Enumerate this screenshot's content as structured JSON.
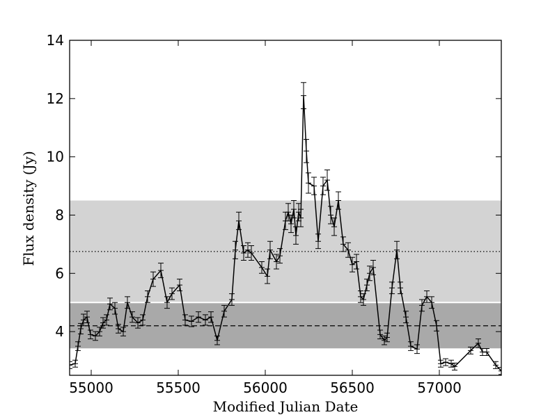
{
  "chart_data": {
    "type": "line",
    "xlabel": "Modified Julian Date",
    "ylabel": "Flux density (Jy)",
    "x": [
      54876,
      54908,
      54924,
      54940,
      54956,
      54976,
      54996,
      55024,
      55048,
      55068,
      55088,
      55108,
      55136,
      55156,
      55184,
      55208,
      55236,
      55268,
      55296,
      55324,
      55356,
      55400,
      55436,
      55464,
      55508,
      55540,
      55576,
      55616,
      55656,
      55688,
      55724,
      55764,
      55808,
      55828,
      55848,
      55876,
      55900,
      55920,
      55980,
      56012,
      56028,
      56064,
      56084,
      56116,
      56132,
      56148,
      56164,
      56176,
      56192,
      56204,
      56220,
      56236,
      56248,
      56280,
      56304,
      56332,
      56356,
      56376,
      56396,
      56420,
      56448,
      56476,
      56500,
      56524,
      56548,
      56564,
      56584,
      56600,
      56620,
      56660,
      56684,
      56700,
      56728,
      56756,
      56776,
      56808,
      56836,
      56872,
      56900,
      56928,
      56956,
      56984,
      57008,
      57036,
      57068,
      57088,
      57180,
      57224,
      57248,
      57272,
      57324,
      57356
    ],
    "series": [
      {
        "color": "#000000",
        "values": [
          2.85,
          2.9,
          3.5,
          4.1,
          4.4,
          4.5,
          3.9,
          3.85,
          4.0,
          4.3,
          4.4,
          4.95,
          4.8,
          4.1,
          4.0,
          5.0,
          4.5,
          4.3,
          4.4,
          5.2,
          5.8,
          6.1,
          5.0,
          5.3,
          5.6,
          4.4,
          4.35,
          4.5,
          4.4,
          4.5,
          3.7,
          4.7,
          5.1,
          6.8,
          7.8,
          6.7,
          6.8,
          6.7,
          6.2,
          5.9,
          6.8,
          6.4,
          6.6,
          7.8,
          8.1,
          7.7,
          8.2,
          7.3,
          8.1,
          7.9,
          12.1,
          10.2,
          9.1,
          9.0,
          7.1,
          9.0,
          9.2,
          8.0,
          7.6,
          8.5,
          7.0,
          6.8,
          6.3,
          6.4,
          5.2,
          5.1,
          5.6,
          6.0,
          6.2,
          3.9,
          3.7,
          3.8,
          5.5,
          6.8,
          5.5,
          4.5,
          3.5,
          3.4,
          4.9,
          5.2,
          5.0,
          4.2,
          2.9,
          2.95,
          2.9,
          2.8,
          3.35,
          3.6,
          3.3,
          3.3,
          2.85,
          2.65
        ],
        "errors": [
          0.12,
          0.12,
          0.15,
          0.18,
          0.2,
          0.2,
          0.15,
          0.15,
          0.15,
          0.18,
          0.18,
          0.2,
          0.2,
          0.15,
          0.15,
          0.2,
          0.18,
          0.18,
          0.18,
          0.2,
          0.25,
          0.25,
          0.2,
          0.2,
          0.2,
          0.18,
          0.18,
          0.18,
          0.18,
          0.18,
          0.15,
          0.2,
          0.2,
          0.3,
          0.3,
          0.25,
          0.25,
          0.25,
          0.2,
          0.25,
          0.3,
          0.25,
          0.25,
          0.3,
          0.3,
          0.3,
          0.3,
          0.3,
          0.3,
          0.3,
          0.45,
          0.4,
          0.35,
          0.3,
          0.25,
          0.3,
          0.35,
          0.3,
          0.3,
          0.3,
          0.25,
          0.25,
          0.25,
          0.25,
          0.2,
          0.2,
          0.2,
          0.25,
          0.25,
          0.15,
          0.15,
          0.15,
          0.2,
          0.3,
          0.2,
          0.2,
          0.15,
          0.15,
          0.2,
          0.2,
          0.2,
          0.18,
          0.12,
          0.12,
          0.12,
          0.12,
          0.12,
          0.15,
          0.12,
          0.12,
          0.12,
          0.12
        ]
      }
    ],
    "bands": [
      {
        "from": 5.0,
        "to": 8.5,
        "color": "#d3d3d3"
      },
      {
        "from": 3.4,
        "to": 5.0,
        "color": "#a9a9a9"
      }
    ],
    "hlines": [
      {
        "value": 4.2,
        "style": "dashed"
      },
      {
        "value": 6.75,
        "style": "dotted"
      }
    ],
    "xlim": [
      54876,
      57356
    ],
    "ylim": [
      2.5,
      14
    ],
    "xticks": [
      55000,
      55500,
      56000,
      56500,
      57000
    ],
    "yticks": [
      4,
      6,
      8,
      10,
      12,
      14
    ]
  }
}
